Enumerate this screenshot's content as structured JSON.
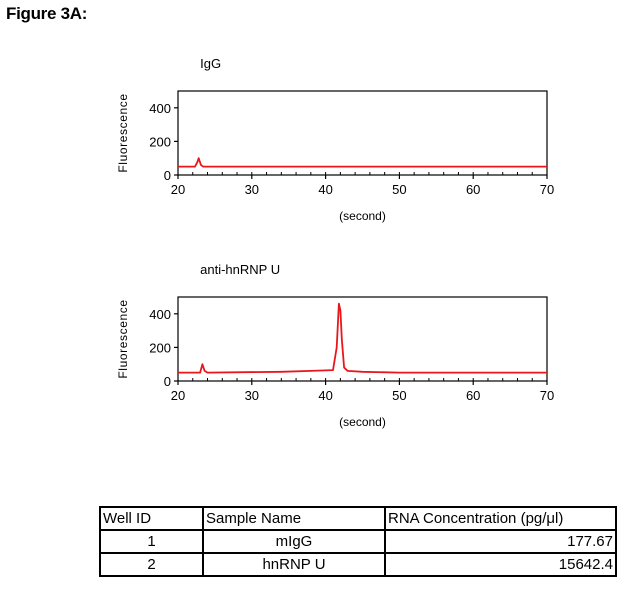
{
  "figure_label": "Figure 3A:",
  "chart_data": [
    {
      "type": "line",
      "title": "IgG",
      "xlabel": "(second)",
      "ylabel": "Fluorescence",
      "xlim": [
        20,
        70
      ],
      "ylim": [
        0,
        500
      ],
      "xticks": [
        20,
        30,
        40,
        50,
        60,
        70
      ],
      "yticks": [
        0,
        200,
        400
      ],
      "grid": false,
      "color": "#e8171c",
      "series": [
        {
          "x": [
            20,
            22.3,
            22.6,
            22.8,
            23.1,
            23.4,
            70
          ],
          "y": [
            50,
            50,
            75,
            100,
            60,
            50,
            50
          ]
        }
      ]
    },
    {
      "type": "line",
      "title": "anti-hnRNP U",
      "xlabel": "(second)",
      "ylabel": "Fluorescence",
      "xlim": [
        20,
        70
      ],
      "ylim": [
        0,
        500
      ],
      "xticks": [
        20,
        30,
        40,
        50,
        60,
        70
      ],
      "yticks": [
        0,
        200,
        400
      ],
      "grid": false,
      "color": "#e8171c",
      "series": [
        {
          "x": [
            20,
            23,
            23.3,
            23.6,
            24,
            34,
            38,
            41,
            41.5,
            41.8,
            42,
            42.2,
            42.5,
            43,
            45,
            50,
            70
          ],
          "y": [
            50,
            50,
            100,
            60,
            50,
            55,
            60,
            65,
            200,
            460,
            420,
            250,
            80,
            60,
            55,
            50,
            50
          ]
        }
      ]
    }
  ],
  "table": {
    "headers": [
      "Well ID",
      "Sample Name",
      "RNA Concentration (pg/μl)"
    ],
    "rows": [
      [
        "1",
        "mIgG",
        "177.67"
      ],
      [
        "2",
        "hnRNP U",
        "15642.4"
      ]
    ]
  }
}
